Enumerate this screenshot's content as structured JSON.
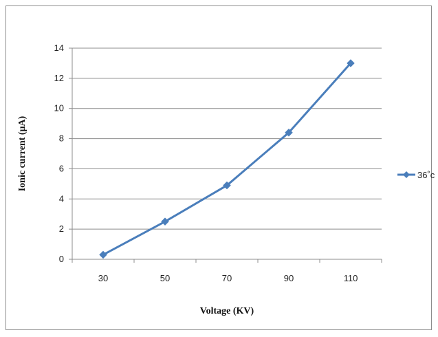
{
  "chart_data": {
    "type": "line",
    "title": "",
    "xlabel": "Voltage (KV)",
    "ylabel": "Ionic current  (μA)",
    "categories": [
      "30",
      "50",
      "70",
      "90",
      "110"
    ],
    "x": [
      30,
      50,
      70,
      90,
      110
    ],
    "ylim": [
      0,
      14
    ],
    "yticks": [
      0,
      2,
      4,
      6,
      8,
      10,
      12,
      14
    ],
    "grid": true,
    "legend_position": "right",
    "series": [
      {
        "name": "36˚c",
        "values": [
          0.3,
          2.5,
          4.9,
          8.4,
          13.0
        ],
        "color": "#4a7ebb",
        "marker": "diamond"
      }
    ]
  }
}
